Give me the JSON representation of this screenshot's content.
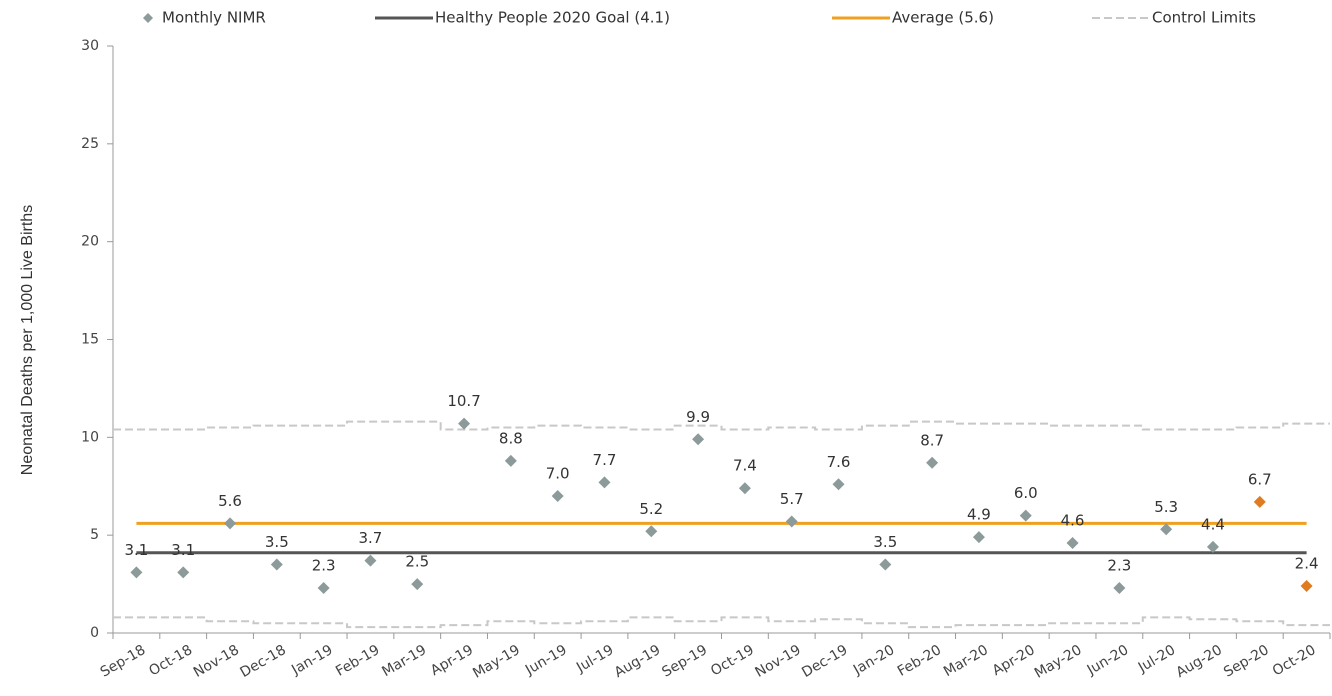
{
  "chart_data": {
    "type": "scatter",
    "y_axis_label": "Neonatal Deaths per 1,000 Live Births",
    "categories": [
      "Sep-18",
      "Oct-18",
      "Nov-18",
      "Dec-18",
      "Jan-19",
      "Feb-19",
      "Mar-19",
      "Apr-19",
      "May-19",
      "Jun-19",
      "Jul-19",
      "Aug-19",
      "Sep-19",
      "Oct-19",
      "Nov-19",
      "Dec-19",
      "Jan-20",
      "Feb-20",
      "Mar-20",
      "Apr-20",
      "May-20",
      "Jun-20",
      "Jul-20",
      "Aug-20",
      "Sep-20",
      "Oct-20"
    ],
    "ylim": [
      0,
      30
    ],
    "yticks": [
      0,
      5,
      10,
      15,
      20,
      25,
      30
    ],
    "series": [
      {
        "name": "Monthly NIMR",
        "color": "#8c9a9a",
        "values": [
          3.1,
          3.1,
          5.6,
          3.5,
          2.3,
          3.7,
          2.5,
          10.7,
          8.8,
          7.0,
          7.7,
          5.2,
          9.9,
          7.4,
          5.7,
          7.6,
          3.5,
          8.7,
          4.9,
          6.0,
          4.6,
          2.3,
          5.3,
          4.4,
          6.7,
          2.4
        ],
        "value_labels": [
          "3.1",
          "3.1",
          "5.6",
          "3.5",
          "2.3",
          "3.7",
          "2.5",
          "10.7",
          "8.8",
          "7.0",
          "7.7",
          "5.2",
          "9.9",
          "7.4",
          "5.7",
          "7.6",
          "3.5",
          "8.7",
          "4.9",
          "6.0",
          "4.6",
          "2.3",
          "5.3",
          "4.4",
          "6.7",
          "2.4"
        ],
        "point_colors": [
          "#8c9a9a",
          "#8c9a9a",
          "#8c9a9a",
          "#8c9a9a",
          "#8c9a9a",
          "#8c9a9a",
          "#8c9a9a",
          "#8c9a9a",
          "#8c9a9a",
          "#8c9a9a",
          "#8c9a9a",
          "#8c9a9a",
          "#8c9a9a",
          "#8c9a9a",
          "#8c9a9a",
          "#8c9a9a",
          "#8c9a9a",
          "#8c9a9a",
          "#8c9a9a",
          "#8c9a9a",
          "#8c9a9a",
          "#8c9a9a",
          "#8c9a9a",
          "#8c9a9a",
          "#e07b20",
          "#e07b20"
        ]
      },
      {
        "name": "Healthy People 2020 Goal (4.1)",
        "color": "#555555",
        "value": 4.1
      },
      {
        "name": "Average (5.6)",
        "color": "#f0a020",
        "value": 5.6
      },
      {
        "name": "Control Limits",
        "color": "#c8c8c8",
        "upper": [
          10.4,
          10.4,
          10.5,
          10.6,
          10.6,
          10.8,
          10.8,
          10.4,
          10.5,
          10.6,
          10.5,
          10.4,
          10.6,
          10.4,
          10.5,
          10.4,
          10.6,
          10.8,
          10.7,
          10.7,
          10.6,
          10.6,
          10.4,
          10.4,
          10.5,
          10.7
        ],
        "lower": [
          0.8,
          0.8,
          0.6,
          0.5,
          0.5,
          0.3,
          0.3,
          0.4,
          0.6,
          0.5,
          0.6,
          0.8,
          0.6,
          0.8,
          0.6,
          0.7,
          0.5,
          0.3,
          0.4,
          0.4,
          0.5,
          0.5,
          0.8,
          0.7,
          0.6,
          0.4
        ]
      }
    ]
  }
}
